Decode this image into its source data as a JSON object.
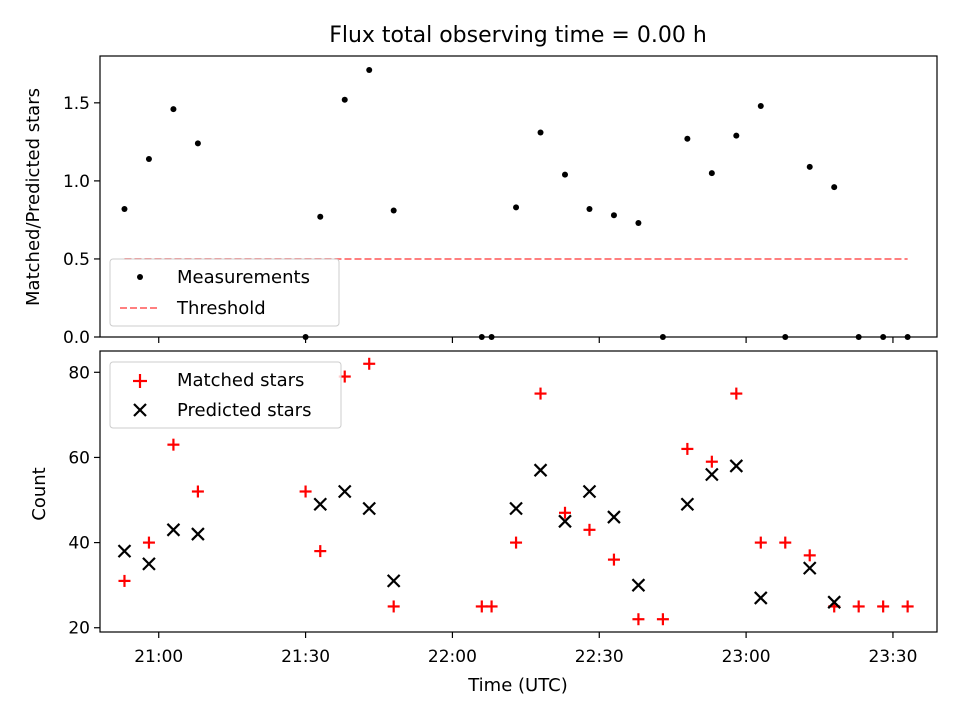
{
  "chart_data": [
    {
      "type": "scatter",
      "title": "Flux total observing time = 0.00 h",
      "xlabel": "",
      "ylabel": "Matched/Predicted stars",
      "xlim": [
        "20:48",
        "23:39"
      ],
      "ylim": [
        0,
        1.8
      ],
      "y_ticks": [
        "0.0",
        "0.5",
        "1.0",
        "1.5"
      ],
      "x_tick_labels_visible": false,
      "legend_location": "lower-left",
      "series": [
        {
          "name": "Measurements",
          "marker": "dot",
          "color": "#000000",
          "x": [
            "20:53",
            "20:58",
            "21:03",
            "21:08",
            "21:30",
            "21:33",
            "21:38",
            "21:43",
            "21:48",
            "22:06",
            "22:08",
            "22:13",
            "22:18",
            "22:23",
            "22:28",
            "22:33",
            "22:38",
            "22:43",
            "22:48",
            "22:53",
            "22:58",
            "23:03",
            "23:08",
            "23:13",
            "23:18",
            "23:23",
            "23:28",
            "23:33"
          ],
          "y": [
            0.82,
            1.14,
            1.46,
            1.24,
            0.0,
            0.77,
            1.52,
            1.71,
            0.81,
            0.0,
            0.0,
            0.83,
            1.31,
            1.04,
            0.82,
            0.78,
            0.73,
            0.0,
            1.27,
            1.05,
            1.29,
            1.48,
            0.0,
            1.09,
            0.96,
            0.0,
            0.0,
            0.0
          ]
        },
        {
          "name": "Threshold",
          "style": "dashed-line",
          "color": "#ff7f7f",
          "x": [
            "20:53",
            "23:33"
          ],
          "y": [
            0.5,
            0.5
          ]
        }
      ]
    },
    {
      "type": "scatter",
      "title": "",
      "xlabel": "Time (UTC)",
      "ylabel": "Count",
      "xlim": [
        "20:48",
        "23:39"
      ],
      "ylim": [
        19,
        85
      ],
      "x_ticks": [
        "21:00",
        "21:30",
        "22:00",
        "22:30",
        "23:00",
        "23:30"
      ],
      "y_ticks": [
        "20",
        "40",
        "60",
        "80"
      ],
      "legend_location": "upper-left",
      "series": [
        {
          "name": "Matched stars",
          "marker": "plus",
          "color": "#ff0000",
          "x": [
            "20:53",
            "20:58",
            "21:03",
            "21:08",
            "21:30",
            "21:33",
            "21:38",
            "21:43",
            "21:48",
            "22:06",
            "22:08",
            "22:13",
            "22:18",
            "22:23",
            "22:28",
            "22:33",
            "22:38",
            "22:43",
            "22:48",
            "22:53",
            "22:58",
            "23:03",
            "23:08",
            "23:13",
            "23:18",
            "23:23",
            "23:28",
            "23:33"
          ],
          "y": [
            31,
            40,
            63,
            52,
            52,
            38,
            79,
            82,
            25,
            25,
            25,
            40,
            75,
            47,
            43,
            36,
            22,
            22,
            62,
            59,
            75,
            40,
            40,
            37,
            25,
            25,
            25,
            25
          ]
        },
        {
          "name": "Predicted stars",
          "marker": "x",
          "color": "#000000",
          "x": [
            "20:53",
            "20:58",
            "21:03",
            "21:08",
            "21:33",
            "21:38",
            "21:43",
            "21:48",
            "22:13",
            "22:18",
            "22:23",
            "22:28",
            "22:33",
            "22:38",
            "22:48",
            "22:53",
            "22:58",
            "23:03",
            "23:13",
            "23:18"
          ],
          "y": [
            38,
            35,
            43,
            42,
            49,
            52,
            48,
            31,
            48,
            57,
            45,
            52,
            46,
            30,
            49,
            56,
            58,
            27,
            34,
            26
          ]
        }
      ]
    }
  ]
}
